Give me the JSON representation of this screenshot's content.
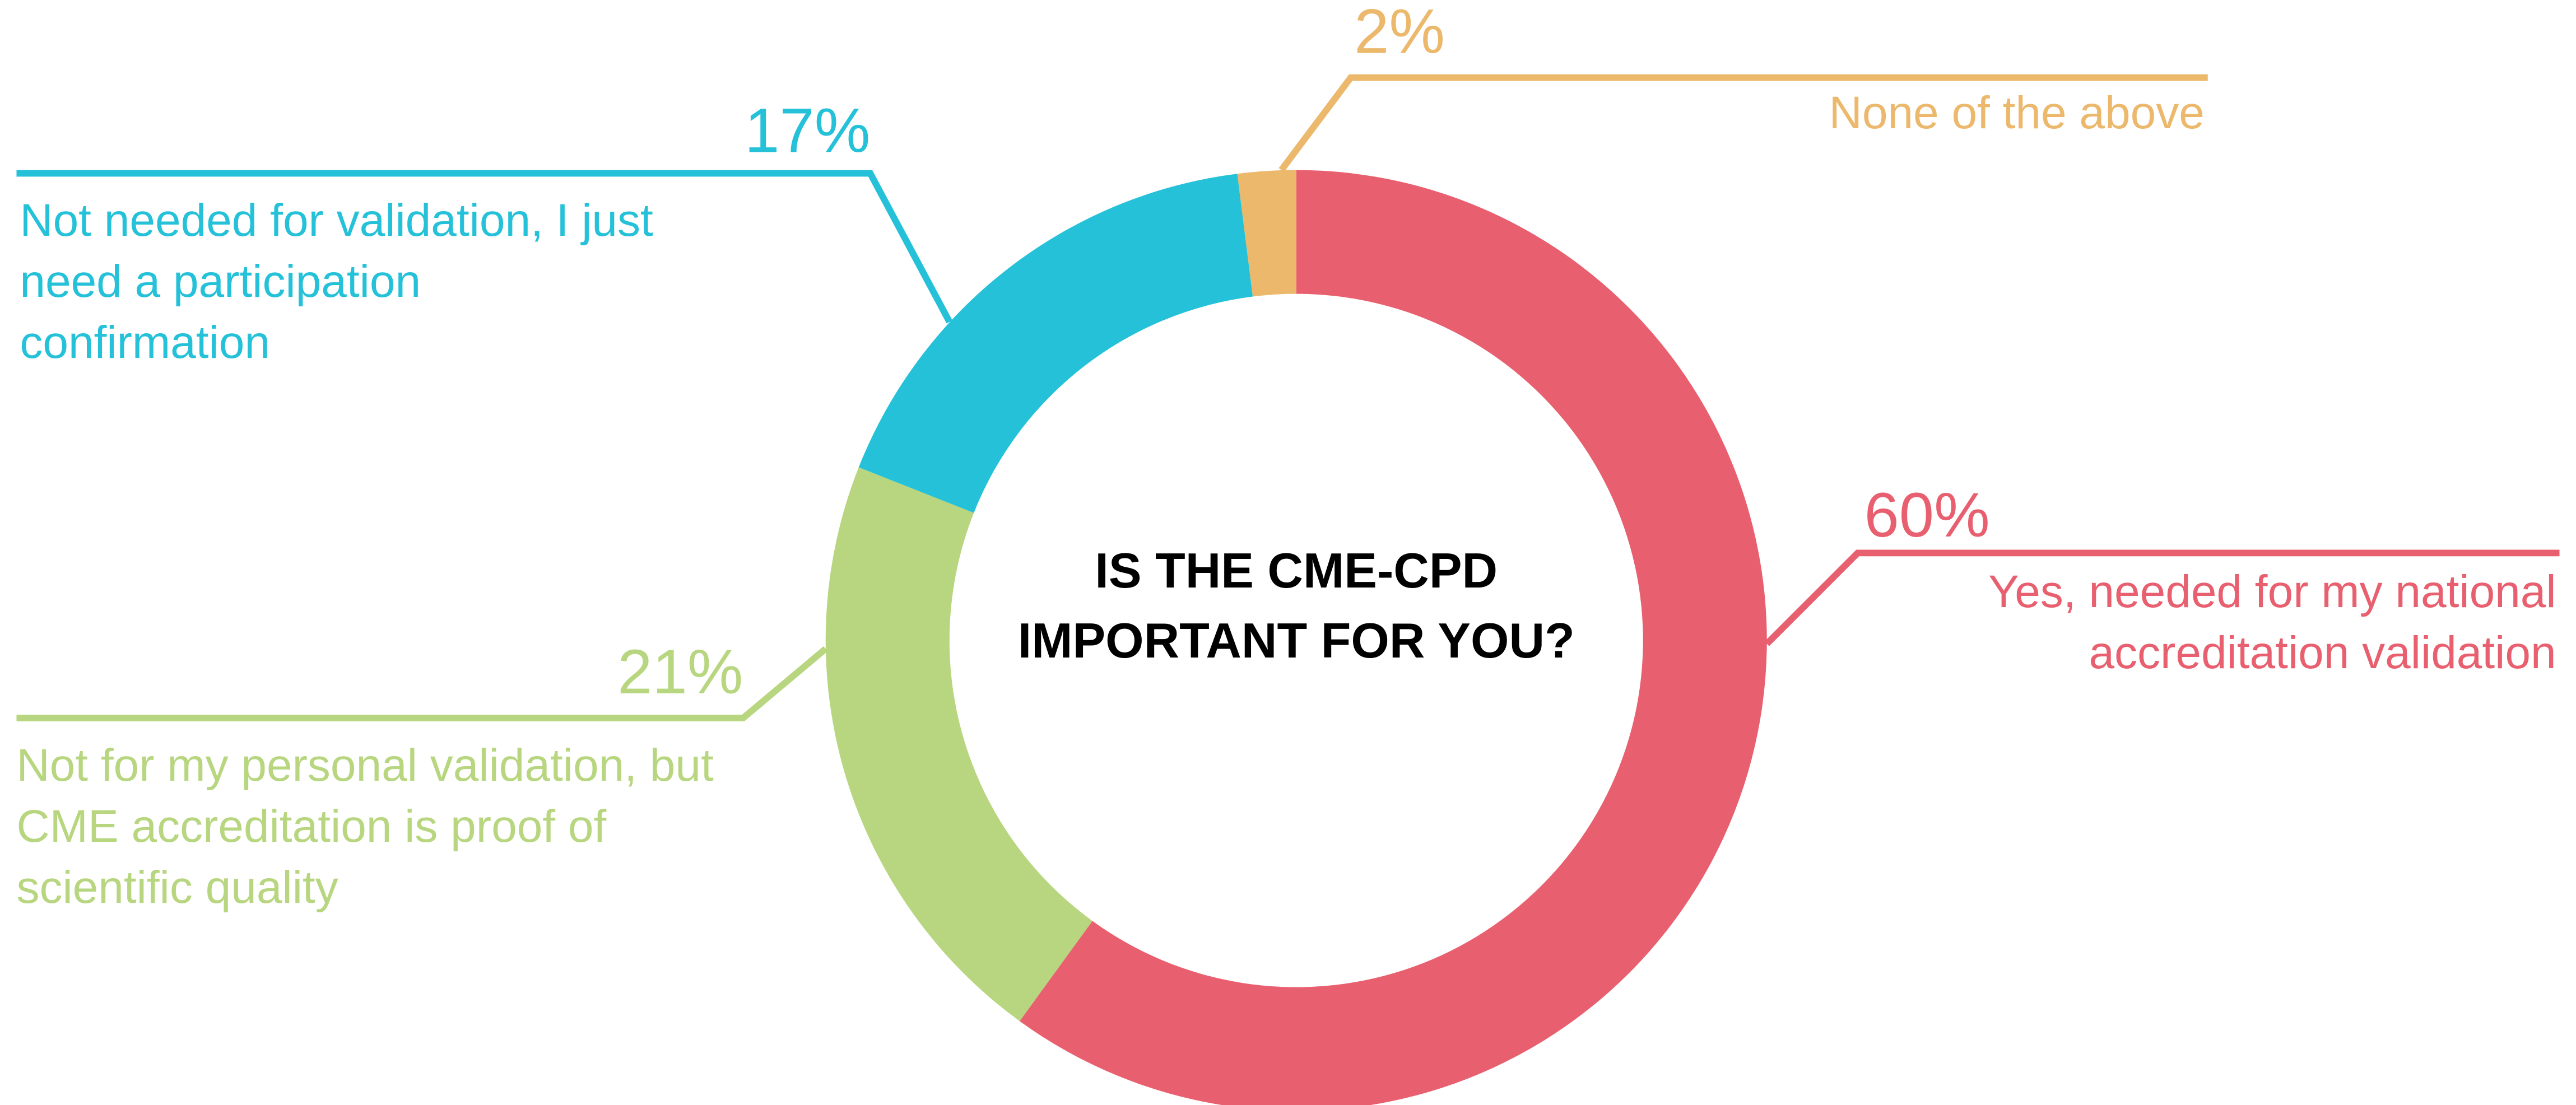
{
  "chart_data": {
    "type": "donut",
    "title": "IS THE CME-CPD IMPORTANT FOR YOU?",
    "categories": [
      "Yes, needed for my national accreditation validation",
      "Not for my personal validation, but CME accreditation is proof of scientific quality",
      "Not needed for validation, I just need a participation confirmation",
      "None of the above"
    ],
    "values": [
      60,
      21,
      17,
      2
    ],
    "value_labels": [
      "60%",
      "21%",
      "17%",
      "2%"
    ],
    "colors": [
      "#e8606f",
      "#b7d67f",
      "#25c1d9",
      "#ebb86c"
    ]
  }
}
